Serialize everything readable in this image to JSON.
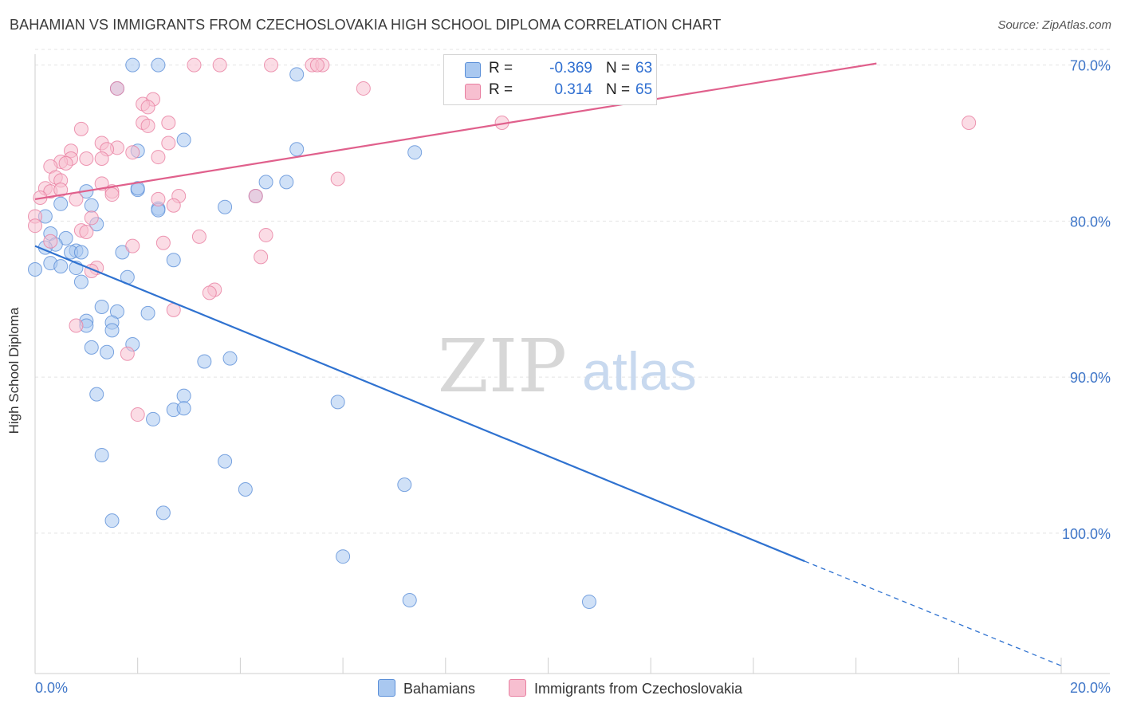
{
  "title": "BAHAMIAN VS IMMIGRANTS FROM CZECHOSLOVAKIA HIGH SCHOOL DIPLOMA CORRELATION CHART",
  "source": "Source: ZipAtlas.com",
  "watermark": {
    "zip": "ZIP",
    "atlas": "atlas"
  },
  "legend": {
    "r_label": "R =",
    "n_label": "N =",
    "rows": [
      {
        "r": "-0.369",
        "n": "63",
        "color": "#a9c8f0",
        "border": "#5b8fd8"
      },
      {
        "r": "0.314",
        "n": "65",
        "color": "#f7bfd0",
        "border": "#e87ea0"
      }
    ]
  },
  "bottom_legend": [
    "Bahamians",
    "Immigrants from Czechoslovakia"
  ],
  "axis": {
    "y_title": "High School Diploma",
    "x_min_label": "0.0%",
    "x_max_label": "20.0%",
    "y_ticks": [
      "100.0%",
      "90.0%",
      "80.0%",
      "70.0%"
    ]
  },
  "chart_data": {
    "type": "scatter",
    "title": "BAHAMIAN VS IMMIGRANTS FROM CZECHOSLOVAKIA HIGH SCHOOL DIPLOMA CORRELATION CHART",
    "xlabel": "",
    "ylabel": "High School Diploma",
    "xlim": [
      0,
      20
    ],
    "ylim": [
      61,
      101
    ],
    "y_ticks": [
      70,
      80,
      90,
      100
    ],
    "grid": true,
    "legend_placement": "bottom-center",
    "series": [
      {
        "name": "Bahamians",
        "color": "#5b8fd8",
        "fill": "#a9c8f0",
        "r": -0.369,
        "n": 63,
        "trend": {
          "x0": 0,
          "y0": 88.4,
          "x1": 15.0,
          "y1": 68.2,
          "dashed_to_x": 20.0,
          "dashed_to_y": 61.5
        },
        "points": [
          [
            1.9,
            100.0
          ],
          [
            2.4,
            100.0
          ],
          [
            5.1,
            99.4
          ],
          [
            1.6,
            98.5
          ],
          [
            2.0,
            94.5
          ],
          [
            2.9,
            95.2
          ],
          [
            5.1,
            94.6
          ],
          [
            7.4,
            94.4
          ],
          [
            4.5,
            92.5
          ],
          [
            4.9,
            92.5
          ],
          [
            1.0,
            91.9
          ],
          [
            2.0,
            92.0
          ],
          [
            0.5,
            91.1
          ],
          [
            1.1,
            91.0
          ],
          [
            2.4,
            90.8
          ],
          [
            2.4,
            90.7
          ],
          [
            3.7,
            90.9
          ],
          [
            4.3,
            91.6
          ],
          [
            0.2,
            90.3
          ],
          [
            1.2,
            89.8
          ],
          [
            0.3,
            89.2
          ],
          [
            0.6,
            88.9
          ],
          [
            0.4,
            88.5
          ],
          [
            0.2,
            88.3
          ],
          [
            0.8,
            88.1
          ],
          [
            0.7,
            88.0
          ],
          [
            0.9,
            88.0
          ],
          [
            1.7,
            88.0
          ],
          [
            0.3,
            87.3
          ],
          [
            0.5,
            87.1
          ],
          [
            0.8,
            87.0
          ],
          [
            2.7,
            87.5
          ],
          [
            0.9,
            86.1
          ],
          [
            1.8,
            86.4
          ],
          [
            0.0,
            86.9
          ],
          [
            1.3,
            84.5
          ],
          [
            1.6,
            84.2
          ],
          [
            2.2,
            84.1
          ],
          [
            1.0,
            83.6
          ],
          [
            1.5,
            83.5
          ],
          [
            1.0,
            83.3
          ],
          [
            1.5,
            83.0
          ],
          [
            1.9,
            82.1
          ],
          [
            1.1,
            81.9
          ],
          [
            1.4,
            81.6
          ],
          [
            3.3,
            81.0
          ],
          [
            3.8,
            81.2
          ],
          [
            1.2,
            78.9
          ],
          [
            2.9,
            78.8
          ],
          [
            2.7,
            77.9
          ],
          [
            2.9,
            78.0
          ],
          [
            2.3,
            77.3
          ],
          [
            5.9,
            78.4
          ],
          [
            1.3,
            75.0
          ],
          [
            3.7,
            74.6
          ],
          [
            4.1,
            72.8
          ],
          [
            7.2,
            73.1
          ],
          [
            2.5,
            71.3
          ],
          [
            1.5,
            70.8
          ],
          [
            6.0,
            68.5
          ],
          [
            7.3,
            65.7
          ],
          [
            10.8,
            65.6
          ],
          [
            2.0,
            92.1
          ]
        ]
      },
      {
        "name": "Immigrants from Czechoslovakia",
        "color": "#e87ea0",
        "fill": "#f7bfd0",
        "r": 0.314,
        "n": 65,
        "trend": {
          "x0": 0,
          "y0": 91.4,
          "x1": 16.4,
          "y1": 100.1
        },
        "points": [
          [
            3.1,
            100.0
          ],
          [
            3.6,
            100.0
          ],
          [
            4.6,
            100.0
          ],
          [
            5.4,
            100.0
          ],
          [
            5.6,
            100.0
          ],
          [
            5.5,
            100.0
          ],
          [
            8.2,
            100.0
          ],
          [
            6.4,
            98.5
          ],
          [
            1.6,
            98.5
          ],
          [
            2.3,
            97.8
          ],
          [
            2.1,
            97.5
          ],
          [
            2.2,
            97.3
          ],
          [
            2.1,
            96.3
          ],
          [
            2.6,
            96.3
          ],
          [
            2.2,
            96.1
          ],
          [
            0.9,
            95.9
          ],
          [
            9.1,
            96.3
          ],
          [
            18.2,
            96.3
          ],
          [
            1.3,
            95.0
          ],
          [
            2.6,
            95.0
          ],
          [
            1.6,
            94.7
          ],
          [
            1.4,
            94.6
          ],
          [
            1.9,
            94.4
          ],
          [
            0.7,
            94.5
          ],
          [
            2.4,
            94.1
          ],
          [
            0.7,
            94.0
          ],
          [
            1.3,
            94.0
          ],
          [
            0.5,
            93.8
          ],
          [
            0.6,
            93.7
          ],
          [
            0.3,
            93.5
          ],
          [
            1.0,
            94.0
          ],
          [
            0.4,
            92.8
          ],
          [
            0.5,
            92.6
          ],
          [
            1.3,
            92.4
          ],
          [
            1.5,
            91.9
          ],
          [
            0.2,
            92.1
          ],
          [
            0.3,
            91.9
          ],
          [
            0.5,
            92.0
          ],
          [
            1.5,
            91.7
          ],
          [
            2.8,
            91.6
          ],
          [
            2.4,
            91.4
          ],
          [
            4.3,
            91.6
          ],
          [
            5.9,
            92.7
          ],
          [
            2.7,
            91.0
          ],
          [
            0.8,
            91.4
          ],
          [
            0.0,
            90.3
          ],
          [
            1.1,
            90.2
          ],
          [
            0.9,
            89.4
          ],
          [
            1.0,
            89.3
          ],
          [
            3.2,
            89.0
          ],
          [
            4.5,
            89.1
          ],
          [
            2.5,
            88.6
          ],
          [
            1.9,
            88.4
          ],
          [
            0.3,
            88.7
          ],
          [
            4.4,
            87.7
          ],
          [
            1.2,
            87.0
          ],
          [
            1.1,
            86.8
          ],
          [
            3.5,
            85.6
          ],
          [
            3.4,
            85.4
          ],
          [
            2.7,
            84.3
          ],
          [
            0.8,
            83.3
          ],
          [
            1.8,
            81.5
          ],
          [
            2.0,
            77.6
          ],
          [
            0.0,
            89.7
          ],
          [
            0.1,
            91.5
          ]
        ]
      }
    ]
  }
}
